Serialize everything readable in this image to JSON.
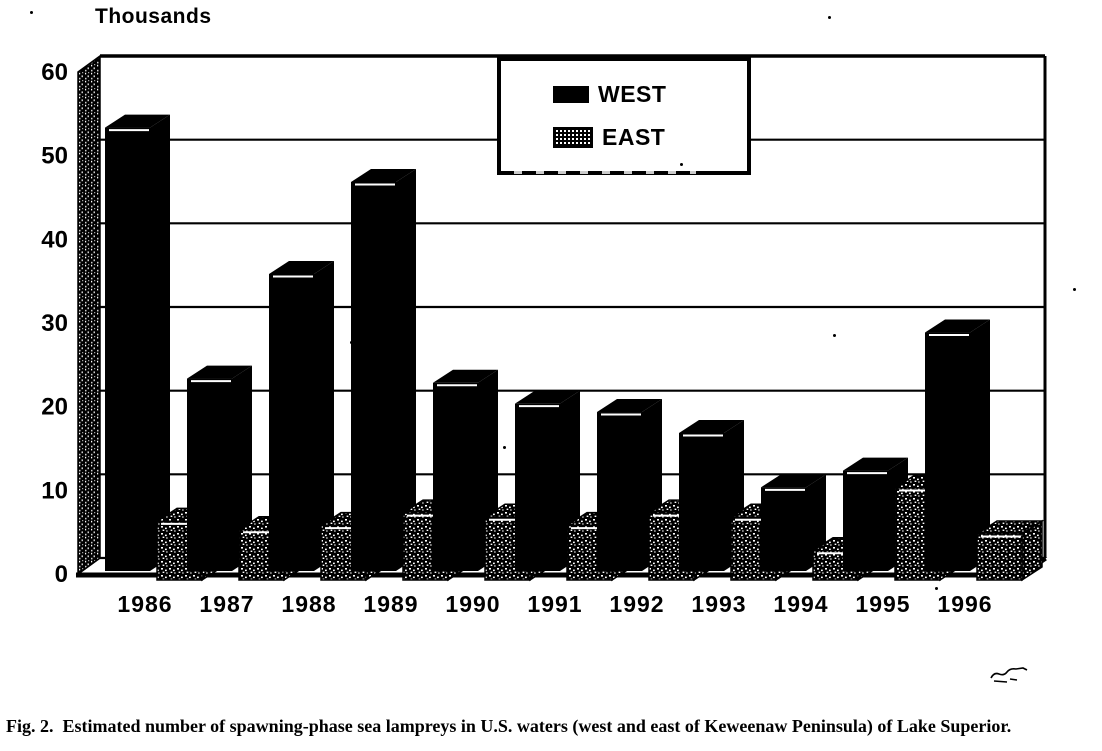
{
  "figure": {
    "caption": "Fig. 2.  Estimated number of spawning-phase sea lampreys in U.S. waters (west and east of Keweenaw Peninsula) of Lake Superior."
  },
  "chart_data": {
    "type": "bar",
    "variant": "3d-column",
    "title": "Thousands",
    "categories": [
      "1986",
      "1987",
      "1988",
      "1989",
      "1990",
      "1991",
      "1992",
      "1993",
      "1994",
      "1995",
      "1996"
    ],
    "series": [
      {
        "name": "WEST",
        "style": "solid-black",
        "values": [
          53,
          23,
          35.5,
          46.5,
          22.5,
          20,
          19,
          16.5,
          10,
          12,
          28.5
        ]
      },
      {
        "name": "EAST",
        "style": "stippled",
        "values": [
          7,
          6,
          6.5,
          8,
          7.5,
          6.5,
          8,
          7.5,
          3.5,
          11,
          5.5
        ]
      }
    ],
    "ylabel": "Thousands",
    "xlabel": "",
    "ylim": [
      0,
      60
    ],
    "yticks": [
      0,
      10,
      20,
      30,
      40,
      50,
      60
    ],
    "grid": "horizontal",
    "legend_position": "top-center",
    "colors": {
      "foreground": "#000000",
      "background": "#ffffff"
    }
  }
}
